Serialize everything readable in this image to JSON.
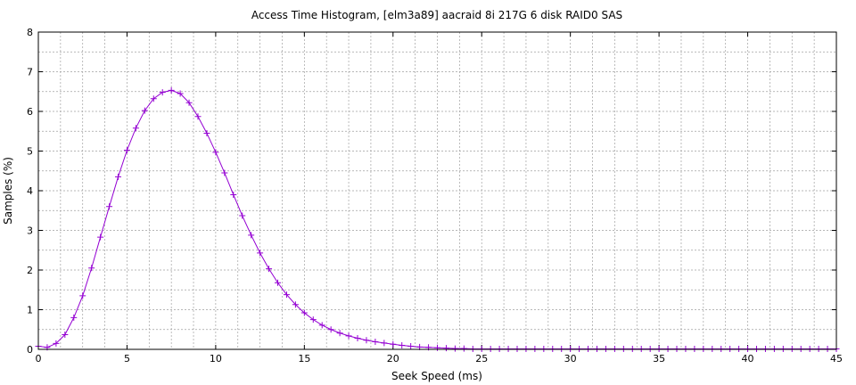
{
  "chart_data": {
    "type": "line",
    "title": "Access Time Histogram, [elm3a89] aacraid 8i 217G 6 disk RAID0 SAS",
    "xlabel": "Seek Speed (ms)",
    "ylabel": "Samples (%)",
    "xlim": [
      0,
      45
    ],
    "ylim": [
      0,
      8
    ],
    "xticks": [
      "0",
      "5",
      "10",
      "15",
      "20",
      "25",
      "30",
      "35",
      "40",
      "45"
    ],
    "yticks": [
      "0",
      "1",
      "2",
      "3",
      "4",
      "5",
      "6",
      "7",
      "8"
    ],
    "grid": true,
    "legend": "none",
    "series": [
      {
        "color": "#9400d3",
        "marker": "plus",
        "x": [
          0,
          0.5,
          1,
          1.5,
          2,
          2.5,
          3,
          3.5,
          4,
          4.5,
          5,
          5.5,
          6,
          6.5,
          7,
          7.5,
          8,
          8.5,
          9,
          9.5,
          10,
          10.5,
          11,
          11.5,
          12,
          12.5,
          13,
          13.5,
          14,
          14.5,
          15,
          15.5,
          16,
          16.5,
          17,
          17.5,
          18,
          18.5,
          19,
          19.5,
          20,
          20.5,
          21,
          21.5,
          22,
          22.5,
          23,
          23.5,
          24,
          24.5,
          25,
          25.5,
          26,
          26.5,
          27,
          27.5,
          28,
          28.5,
          29,
          29.5,
          30,
          30.5,
          31,
          31.5,
          32,
          32.5,
          33,
          33.5,
          34,
          34.5,
          35,
          35.5,
          36,
          36.5,
          37,
          37.5,
          38,
          38.5,
          39,
          39.5,
          40,
          40.5,
          41,
          41.5,
          42,
          42.5,
          43,
          43.5,
          44,
          44.5,
          45
        ],
        "values": [
          0.08,
          0.05,
          0.15,
          0.37,
          0.8,
          1.35,
          2.05,
          2.83,
          3.6,
          4.35,
          5.02,
          5.58,
          6.02,
          6.32,
          6.48,
          6.53,
          6.45,
          6.22,
          5.87,
          5.45,
          4.97,
          4.45,
          3.9,
          3.37,
          2.88,
          2.43,
          2.03,
          1.68,
          1.38,
          1.13,
          0.92,
          0.75,
          0.61,
          0.5,
          0.41,
          0.34,
          0.28,
          0.23,
          0.19,
          0.16,
          0.13,
          0.1,
          0.08,
          0.06,
          0.05,
          0.04,
          0.03,
          0.02,
          0.02,
          0.01,
          0.01,
          0.01,
          0.01,
          0.01,
          0.01,
          0.01,
          0.01,
          0.01,
          0.01,
          0.01,
          0.01,
          0.01,
          0.01,
          0.01,
          0.01,
          0.01,
          0.01,
          0.01,
          0.01,
          0.01,
          0.01,
          0.01,
          0.01,
          0.01,
          0.01,
          0.01,
          0.01,
          0.01,
          0.01,
          0.01,
          0.01,
          0.01,
          0.01,
          0.01,
          0.01,
          0.01,
          0.01,
          0.01,
          0.01,
          0.01,
          0.01
        ]
      }
    ]
  }
}
